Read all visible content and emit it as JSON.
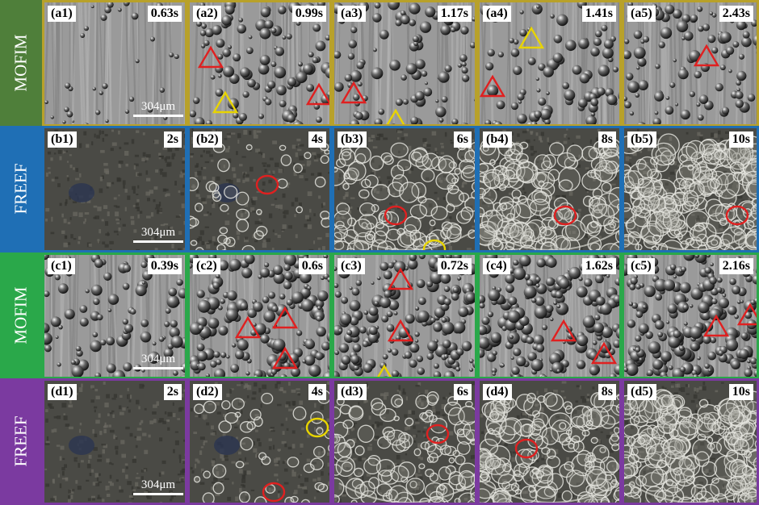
{
  "colors": {
    "row_borders": [
      "#b8a12a",
      "#1f6fb5",
      "#2aa84a",
      "#7b3aa0"
    ],
    "side_colors": [
      "#4f7f3a",
      "#1f6fb5",
      "#2aa84a",
      "#7b3aa0"
    ],
    "red_mark": "#e02020",
    "yellow_mark": "#e8d400"
  },
  "rows": [
    {
      "method": "MOFIM",
      "scale": "304μm",
      "panels": [
        {
          "label": "(a1)",
          "time": "0.63s"
        },
        {
          "label": "(a2)",
          "time": "0.99s"
        },
        {
          "label": "(a3)",
          "time": "1.17s"
        },
        {
          "label": "(a4)",
          "time": "1.41s"
        },
        {
          "label": "(a5)",
          "time": "2.43s"
        }
      ]
    },
    {
      "method": "FREEF",
      "scale": "304μm",
      "panels": [
        {
          "label": "(b1)",
          "time": "2s"
        },
        {
          "label": "(b2)",
          "time": "4s"
        },
        {
          "label": "(b3)",
          "time": "6s"
        },
        {
          "label": "(b4)",
          "time": "8s"
        },
        {
          "label": "(b5)",
          "time": "10s"
        }
      ]
    },
    {
      "method": "MOFIM",
      "scale": "304μm",
      "panels": [
        {
          "label": "(c1)",
          "time": "0.39s"
        },
        {
          "label": "(c2)",
          "time": "0.6s"
        },
        {
          "label": "(c3)",
          "time": "0.72s"
        },
        {
          "label": "(c4)",
          "time": "1.62s"
        },
        {
          "label": "(c5)",
          "time": "2.16s"
        }
      ]
    },
    {
      "method": "FREEF",
      "scale": "304μm",
      "panels": [
        {
          "label": "(d1)",
          "time": "2s"
        },
        {
          "label": "(d2)",
          "time": "4s"
        },
        {
          "label": "(d3)",
          "time": "6s"
        },
        {
          "label": "(d4)",
          "time": "8s"
        },
        {
          "label": "(d5)",
          "time": "10s"
        }
      ]
    }
  ]
}
